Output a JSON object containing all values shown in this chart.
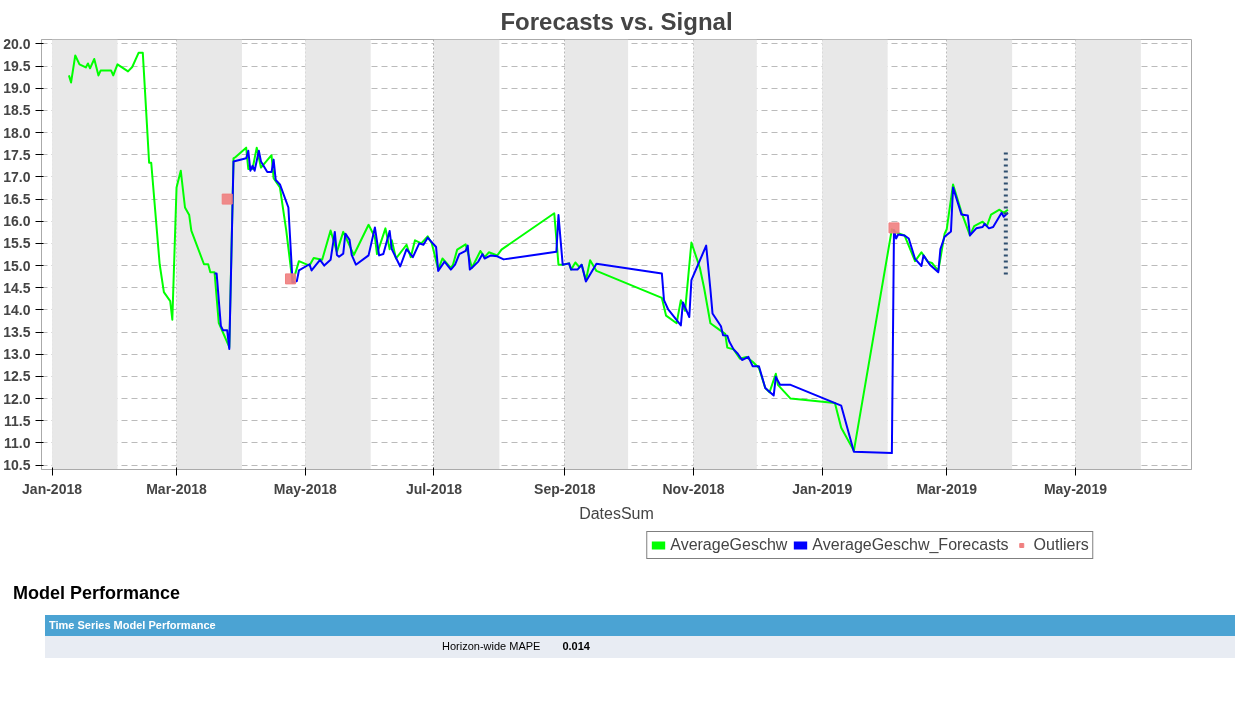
{
  "chart_data": {
    "type": "line",
    "title": "Forecasts vs. Signal",
    "xlabel": "DatesSum",
    "xlim": [
      "2017-12-27",
      "2019-06-25"
    ],
    "xticks": [
      {
        "value": "2018-01-01",
        "label": "Jan-2018"
      },
      {
        "value": "2018-03-01",
        "label": "Mar-2018"
      },
      {
        "value": "2018-05-01",
        "label": "May-2018"
      },
      {
        "value": "2018-07-01",
        "label": "Jul-2018"
      },
      {
        "value": "2018-09-01",
        "label": "Sep-2018"
      },
      {
        "value": "2018-11-01",
        "label": "Nov-2018"
      },
      {
        "value": "2019-01-01",
        "label": "Jan-2019"
      },
      {
        "value": "2019-03-01",
        "label": "Mar-2019"
      },
      {
        "value": "2019-05-01",
        "label": "May-2019"
      }
    ],
    "ylim": [
      10.4,
      20.1
    ],
    "yticks": [
      10.5,
      {
        "value": 11,
        "label": "11.0"
      },
      11.5,
      {
        "value": 12,
        "label": "12.0"
      },
      12.5,
      {
        "value": 13,
        "label": "13.0"
      },
      13.5,
      {
        "value": 14,
        "label": "14.0"
      },
      14.5,
      {
        "value": 15,
        "label": "15.0"
      },
      15.5,
      {
        "value": 16,
        "label": "16.0"
      },
      16.5,
      {
        "value": 17,
        "label": "17.0"
      },
      17.5,
      {
        "value": 18,
        "label": "18.0"
      },
      18.5,
      {
        "value": 19,
        "label": "19.0"
      },
      19.5,
      {
        "value": 20,
        "label": "20.0"
      }
    ],
    "grid": true,
    "legend": "bottom",
    "bands": [
      {
        "axis": "x",
        "from": "2018-01-01",
        "to": "2018-02-01",
        "color": "#e8e8e8"
      },
      {
        "axis": "x",
        "from": "2018-03-01",
        "to": "2018-04-01",
        "color": "#e8e8e8"
      },
      {
        "axis": "x",
        "from": "2018-05-01",
        "to": "2018-06-01",
        "color": "#e8e8e8"
      },
      {
        "axis": "x",
        "from": "2018-07-01",
        "to": "2018-08-01",
        "color": "#e8e8e8"
      },
      {
        "axis": "x",
        "from": "2018-09-01",
        "to": "2018-10-01",
        "color": "#e8e8e8"
      },
      {
        "axis": "x",
        "from": "2018-11-01",
        "to": "2018-12-01",
        "color": "#e8e8e8"
      },
      {
        "axis": "x",
        "from": "2019-01-01",
        "to": "2019-02-01",
        "color": "#e8e8e8"
      },
      {
        "axis": "x",
        "from": "2019-03-01",
        "to": "2019-04-01",
        "color": "#e8e8e8"
      },
      {
        "axis": "x",
        "from": "2019-05-01",
        "to": "2019-06-01",
        "color": "#e8e8e8"
      }
    ],
    "series": [
      {
        "name": "AverageGeschw",
        "color": "#00ff00",
        "marker": "none",
        "line_style": "solid",
        "x": [
          "2018-01-09",
          "2018-01-10",
          "2018-01-12",
          "2018-01-14",
          "2018-01-17",
          "2018-01-18",
          "2018-01-19",
          "2018-01-21",
          "2018-01-23",
          "2018-01-24",
          "2018-01-29",
          "2018-01-30",
          "2018-02-01",
          "2018-02-06",
          "2018-02-08",
          "2018-02-11",
          "2018-02-13",
          "2018-02-14",
          "2018-02-16",
          "2018-02-17",
          "2018-02-21",
          "2018-02-23",
          "2018-02-26",
          "2018-02-27",
          "2018-03-01",
          "2018-03-03",
          "2018-03-05",
          "2018-03-07",
          "2018-03-08",
          "2018-03-14",
          "2018-03-16",
          "2018-03-17",
          "2018-03-19",
          "2018-03-21",
          "2018-03-26",
          "2018-03-28",
          "2018-03-29",
          "2018-04-03",
          "2018-04-04",
          "2018-04-06",
          "2018-04-08",
          "2018-04-10",
          "2018-04-15",
          "2018-04-16",
          "2018-04-19",
          "2018-04-22",
          "2018-04-25",
          "2018-04-28",
          "2018-05-03",
          "2018-05-05",
          "2018-05-09",
          "2018-05-13",
          "2018-05-16",
          "2018-05-19",
          "2018-05-24",
          "2018-05-31",
          "2018-06-03",
          "2018-06-04",
          "2018-06-08",
          "2018-06-10",
          "2018-06-11",
          "2018-06-13",
          "2018-06-18",
          "2018-06-20",
          "2018-06-22",
          "2018-06-25",
          "2018-06-28",
          "2018-06-30",
          "2018-07-03",
          "2018-07-05",
          "2018-07-09",
          "2018-07-10",
          "2018-07-12",
          "2018-07-16",
          "2018-07-19",
          "2018-07-23",
          "2018-07-25",
          "2018-07-27",
          "2018-07-31",
          "2018-08-02",
          "2018-08-27",
          "2018-08-29",
          "2018-08-31",
          "2018-09-03",
          "2018-09-04",
          "2018-09-06",
          "2018-09-08",
          "2018-09-09",
          "2018-09-11",
          "2018-09-13",
          "2018-09-16",
          "2018-10-17",
          "2018-10-19",
          "2018-10-24",
          "2018-10-26",
          "2018-10-28",
          "2018-10-31",
          "2018-11-04",
          "2018-11-06",
          "2018-11-09",
          "2018-11-13",
          "2018-11-16",
          "2018-11-17",
          "2018-11-20",
          "2018-11-23",
          "2018-11-26",
          "2018-11-29",
          "2018-12-02",
          "2018-12-05",
          "2018-12-07",
          "2018-12-10",
          "2018-12-11",
          "2018-12-17",
          "2019-01-07",
          "2019-01-10",
          "2019-01-16",
          "2019-02-03",
          "2019-02-05",
          "2019-02-09",
          "2019-02-14",
          "2019-02-17",
          "2019-02-20",
          "2019-02-22",
          "2019-02-25",
          "2019-02-28",
          "2019-03-01",
          "2019-03-04",
          "2019-03-08",
          "2019-03-12",
          "2019-03-14",
          "2019-03-18",
          "2019-03-20",
          "2019-03-22",
          "2019-03-26",
          "2019-03-28",
          "2019-03-30"
        ],
        "values": [
          19.29,
          19.13,
          19.74,
          19.54,
          19.47,
          19.56,
          19.45,
          19.66,
          19.29,
          19.4,
          19.4,
          19.29,
          19.54,
          19.38,
          19.48,
          19.8,
          19.8,
          18.98,
          17.32,
          17.32,
          15.03,
          14.4,
          14.2,
          13.78,
          16.76,
          17.14,
          16.31,
          16.14,
          15.79,
          15.03,
          15.03,
          14.85,
          14.85,
          13.71,
          13.16,
          17.42,
          17.45,
          17.66,
          17.18,
          17.18,
          17.66,
          17.21,
          17.49,
          16.97,
          16.76,
          15.79,
          14.61,
          15.1,
          15.0,
          15.17,
          15.13,
          15.79,
          15.31,
          15.76,
          15.24,
          15.92,
          15.64,
          15.26,
          15.84,
          15.37,
          15.57,
          15.16,
          15.47,
          15.19,
          15.57,
          15.5,
          15.66,
          15.5,
          14.91,
          15.16,
          14.95,
          15.02,
          15.36,
          15.48,
          14.95,
          15.33,
          15.19,
          15.3,
          15.23,
          15.36,
          16.18,
          15.02,
          15.02,
          15.05,
          14.91,
          15.07,
          14.96,
          15.02,
          14.67,
          15.12,
          14.88,
          14.27,
          13.87,
          13.7,
          14.22,
          13.98,
          15.52,
          14.95,
          14.5,
          13.7,
          13.56,
          13.46,
          13.15,
          13.11,
          12.9,
          12.94,
          12.83,
          12.69,
          12.24,
          12.14,
          12.56,
          12.31,
          12.0,
          11.9,
          11.34,
          10.82,
          15.82,
          15.75,
          15.68,
          15.1,
          15.3,
          15.09,
          15.06,
          14.88,
          15.72,
          15.82,
          16.83,
          16.2,
          15.68,
          15.89,
          15.99,
          15.89,
          16.15,
          16.26,
          16.19,
          16.26
        ]
      },
      {
        "name": "AverageGeschw_Forecasts",
        "color": "#0000ff",
        "marker": "none",
        "line_style": "solid",
        "x": [
          "2018-03-19",
          "2018-03-20",
          "2018-03-22",
          "2018-03-23",
          "2018-03-25",
          "2018-03-26",
          "2018-03-28",
          "2018-04-03",
          "2018-04-04",
          "2018-04-05",
          "2018-04-06",
          "2018-04-07",
          "2018-04-09",
          "2018-04-10",
          "2018-04-13",
          "2018-04-15",
          "2018-04-16",
          "2018-04-17",
          "2018-04-19",
          "2018-04-23",
          "2018-04-25",
          "2018-04-27",
          "2018-04-28",
          "2018-05-03",
          "2018-05-04",
          "2018-05-08",
          "2018-05-10",
          "2018-05-13",
          "2018-05-15",
          "2018-05-16",
          "2018-05-17",
          "2018-05-19",
          "2018-05-20",
          "2018-05-22",
          "2018-05-23",
          "2018-05-25",
          "2018-05-31",
          "2018-06-03",
          "2018-06-05",
          "2018-06-07",
          "2018-06-10",
          "2018-06-11",
          "2018-06-15",
          "2018-06-18",
          "2018-06-21",
          "2018-06-24",
          "2018-06-26",
          "2018-06-28",
          "2018-07-02",
          "2018-07-03",
          "2018-07-06",
          "2018-07-09",
          "2018-07-11",
          "2018-07-13",
          "2018-07-16",
          "2018-07-17",
          "2018-07-18",
          "2018-07-19",
          "2018-07-22",
          "2018-07-24",
          "2018-07-25",
          "2018-07-28",
          "2018-07-31",
          "2018-08-03",
          "2018-08-28",
          "2018-08-29",
          "2018-08-31",
          "2018-09-03",
          "2018-09-04",
          "2018-09-07",
          "2018-09-09",
          "2018-09-11",
          "2018-09-16",
          "2018-10-17",
          "2018-10-18",
          "2018-10-20",
          "2018-10-26",
          "2018-10-27",
          "2018-10-30",
          "2018-10-31",
          "2018-11-07",
          "2018-11-09",
          "2018-11-10",
          "2018-11-14",
          "2018-11-15",
          "2018-11-17",
          "2018-11-18",
          "2018-11-20",
          "2018-11-22",
          "2018-11-24",
          "2018-11-27",
          "2018-11-29",
          "2018-12-02",
          "2018-12-05",
          "2018-12-09",
          "2018-12-10",
          "2018-12-12",
          "2018-12-17",
          "2019-01-10",
          "2019-01-16",
          "2019-02-03",
          "2019-02-04",
          "2019-02-05",
          "2019-02-06",
          "2019-02-09",
          "2019-02-11",
          "2019-02-14",
          "2019-02-17",
          "2019-02-18",
          "2019-02-21",
          "2019-02-25",
          "2019-02-26",
          "2019-02-28",
          "2019-03-03",
          "2019-03-04",
          "2019-03-08",
          "2019-03-11",
          "2019-03-12",
          "2019-03-15",
          "2019-03-18",
          "2019-03-19",
          "2019-03-21",
          "2019-03-23",
          "2019-03-27",
          "2019-03-28",
          "2019-03-30"
        ],
        "values": [
          14.82,
          14.82,
          13.64,
          13.54,
          13.54,
          13.12,
          17.35,
          17.42,
          17.59,
          17.14,
          17.25,
          17.14,
          17.59,
          17.35,
          17.11,
          17.11,
          17.39,
          16.93,
          16.83,
          16.31,
          14.61,
          14.65,
          14.89,
          15.03,
          14.89,
          15.13,
          15.0,
          15.13,
          15.76,
          15.24,
          15.2,
          15.27,
          15.72,
          15.58,
          15.24,
          15.02,
          15.23,
          15.86,
          15.23,
          15.26,
          15.78,
          15.37,
          14.98,
          15.37,
          15.19,
          15.5,
          15.47,
          15.63,
          15.42,
          14.88,
          15.09,
          14.91,
          15.02,
          15.26,
          15.33,
          15.45,
          14.91,
          14.95,
          15.09,
          15.26,
          15.16,
          15.23,
          15.21,
          15.14,
          15.31,
          16.14,
          15.02,
          15.05,
          14.91,
          14.91,
          15.02,
          14.64,
          15.04,
          14.82,
          14.22,
          14.01,
          13.65,
          14.17,
          13.84,
          14.67,
          15.45,
          14.46,
          13.92,
          13.63,
          13.43,
          13.42,
          13.28,
          13.11,
          13.01,
          12.87,
          12.94,
          12.73,
          12.73,
          12.24,
          12.07,
          12.49,
          12.31,
          12.31,
          11.84,
          10.8,
          10.77,
          15.8,
          15.61,
          15.7,
          15.68,
          15.61,
          15.15,
          14.99,
          15.23,
          15.02,
          14.85,
          15.37,
          15.65,
          15.77,
          16.76,
          16.15,
          16.13,
          15.68,
          15.84,
          15.87,
          15.94,
          15.84,
          15.87,
          16.19,
          16.1,
          16.19
        ]
      },
      {
        "name": "Outliers",
        "type": "scatter",
        "color": "#f08080",
        "marker": "square",
        "x": [
          "2018-03-25",
          "2018-04-24",
          "2019-02-04"
        ],
        "values": [
          16.5,
          14.7,
          15.85
        ]
      },
      {
        "type": "line",
        "color": "#2f4f6f",
        "marker": "none",
        "line_style": "dotted",
        "x": [
          "2019-03-29",
          "2019-03-29"
        ],
        "values": [
          14.8,
          17.55
        ]
      }
    ],
    "annotations": [
      "Model Performance",
      "Time Series Model Performance",
      "Horizon-wide MAPE",
      "0.014"
    ]
  }
}
